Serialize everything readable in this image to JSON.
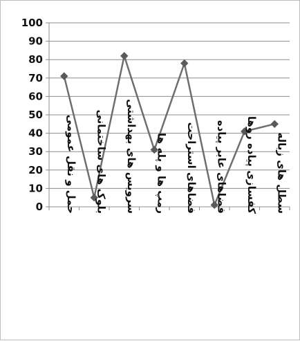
{
  "chart_data": {
    "type": "line",
    "title": "",
    "xlabel": "",
    "ylabel": "",
    "ylim": [
      0,
      100
    ],
    "ytick_step": 10,
    "grid": true,
    "legend": "none",
    "line_color": "#6e6e6e",
    "marker": "diamond",
    "categories": [
      "حمل و نقل عمومی",
      "بلوک های ساختمانی",
      "سرویس های بهداشتی",
      "رمپ ها و پله ها",
      "فضاهای استراحت",
      "فضاهای عابر پیاده",
      "کفسازی پیاده روها",
      "سطل های زباله"
    ],
    "values": [
      71,
      5,
      82,
      31,
      78,
      1,
      41,
      45
    ]
  }
}
